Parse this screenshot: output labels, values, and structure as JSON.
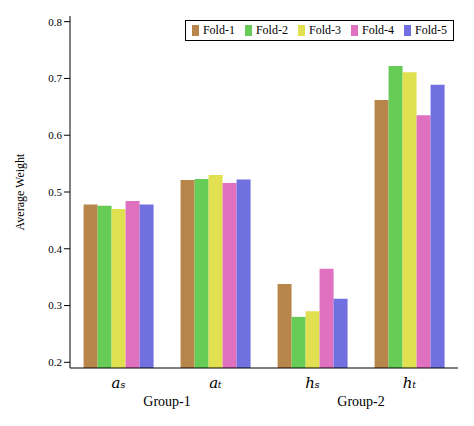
{
  "chart_data": {
    "type": "bar",
    "y_label": "Average Weight",
    "categories": [
      "aₛ",
      "aₜ",
      "hₛ",
      "hₜ"
    ],
    "group_labels": [
      "Group-1",
      "Group-2"
    ],
    "series": [
      {
        "name": "Fold-1",
        "color": "#b8864b",
        "values": [
          0.478,
          0.521,
          0.338,
          0.662
        ]
      },
      {
        "name": "Fold-2",
        "color": "#66cc55",
        "values": [
          0.476,
          0.523,
          0.28,
          0.722
        ]
      },
      {
        "name": "Fold-3",
        "color": "#e0e050",
        "values": [
          0.47,
          0.53,
          0.29,
          0.711
        ]
      },
      {
        "name": "Fold-4",
        "color": "#e070c0",
        "values": [
          0.484,
          0.516,
          0.365,
          0.635
        ]
      },
      {
        "name": "Fold-5",
        "color": "#7070e0",
        "values": [
          0.478,
          0.522,
          0.312,
          0.689
        ]
      }
    ],
    "ylim": [
      0.19,
      0.81
    ],
    "yticks": [
      0.2,
      0.3,
      0.4,
      0.5,
      0.6,
      0.7,
      0.8
    ],
    "legend": "top",
    "grid": false
  }
}
